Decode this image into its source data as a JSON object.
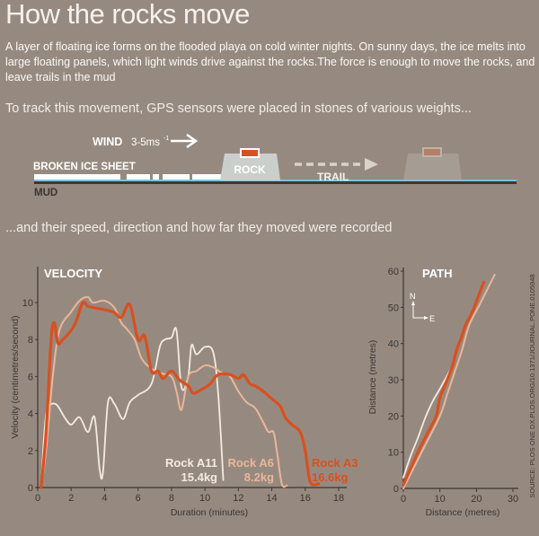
{
  "title": "How the rocks move",
  "intro": "A layer of floating ice forms on the flooded playa on cold winter nights. On sunny days, the ice melts into large floating panels, which light winds drive against the rocks.The force is enough to move the rocks, and leave trails in the mud",
  "sub1": "To track this movement, GPS sensors were placed in stones of various weights...",
  "sub2": "...and their speed, direction and how far they moved were recorded",
  "diagram": {
    "wind": "WIND",
    "wind_speed": "3-5ms",
    "wind_unit_exp": "-1",
    "ice": "BROKEN ICE SHEET",
    "mud": "MUD",
    "rock": "ROCK",
    "trail": "TRAIL"
  },
  "colors": {
    "bg": "#968a80",
    "a3": "#d9501f",
    "a6": "#eab699",
    "a11": "#f4ebe0",
    "water": "#7fbfdc",
    "axis": "#3a3533"
  },
  "source": "SOURCE: PLOS ONE DX.PLOS.ORG/10.1371/JOURNAL.PONE.0105948",
  "chart_data": [
    {
      "type": "line",
      "title": "VELOCITY",
      "xlabel": "Duration (minutes)",
      "ylabel": "Velocity (centimetres/second)",
      "xlim": [
        0,
        18
      ],
      "ylim": [
        0,
        11
      ],
      "xticks": [
        "0",
        "2",
        "4",
        "6",
        "8",
        "10",
        "12",
        "14",
        "16",
        "18"
      ],
      "yticks": [
        "0",
        "2",
        "4",
        "6",
        "8",
        "10"
      ],
      "series": [
        {
          "name": "Rock A11",
          "weight": "15.4kg",
          "color": "#f4ebe0",
          "points": [
            [
              0.2,
              0
            ],
            [
              0.4,
              3
            ],
            [
              0.6,
              4.3
            ],
            [
              1.1,
              4.5
            ],
            [
              1.6,
              3.8
            ],
            [
              2,
              3.4
            ],
            [
              2.5,
              3.8
            ],
            [
              3,
              3
            ],
            [
              3.4,
              3.8
            ],
            [
              3.7,
              1
            ],
            [
              3.9,
              0.8
            ],
            [
              4.2,
              4.6
            ],
            [
              4.6,
              4.5
            ],
            [
              5.1,
              3.7
            ],
            [
              5.5,
              4.6
            ],
            [
              6,
              5
            ],
            [
              6.8,
              5.6
            ],
            [
              7.3,
              7.6
            ],
            [
              7.6,
              8
            ],
            [
              8,
              8.1
            ],
            [
              8.3,
              8.5
            ],
            [
              8.6,
              5.4
            ],
            [
              9,
              6
            ],
            [
              9.2,
              7.7
            ],
            [
              9.5,
              7.2
            ],
            [
              10,
              7.6
            ],
            [
              10.5,
              7.3
            ],
            [
              10.8,
              5
            ],
            [
              11.1,
              0.4
            ]
          ]
        },
        {
          "name": "Rock A6",
          "weight": "8.2kg",
          "color": "#eab699",
          "points": [
            [
              0.2,
              0
            ],
            [
              0.5,
              2
            ],
            [
              0.9,
              6
            ],
            [
              1.3,
              8.5
            ],
            [
              2,
              9.5
            ],
            [
              2.5,
              10.1
            ],
            [
              3,
              10.3
            ],
            [
              3.3,
              10
            ],
            [
              4,
              10.1
            ],
            [
              4.6,
              9.7
            ],
            [
              5,
              8.9
            ],
            [
              5.3,
              8.6
            ],
            [
              5.8,
              8
            ],
            [
              6.2,
              7
            ],
            [
              6.7,
              6.5
            ],
            [
              7.3,
              6.2
            ],
            [
              8,
              6
            ],
            [
              8.3,
              5.2
            ],
            [
              8.6,
              4.2
            ],
            [
              9,
              6
            ],
            [
              9.5,
              6.3
            ],
            [
              10,
              6.6
            ],
            [
              10.5,
              6.5
            ],
            [
              11,
              6.2
            ],
            [
              11.5,
              6
            ],
            [
              12,
              5.2
            ],
            [
              12.5,
              4.6
            ],
            [
              13,
              4.3
            ],
            [
              13.5,
              3.5
            ],
            [
              13.8,
              3
            ],
            [
              14.1,
              3
            ],
            [
              14.3,
              2
            ],
            [
              14.6,
              0.2
            ],
            [
              14.9,
              0.1
            ]
          ]
        },
        {
          "name": "Rock A3",
          "weight": "16.6kg",
          "color": "#d9501f",
          "points": [
            [
              0.2,
              0
            ],
            [
              0.5,
              3
            ],
            [
              0.8,
              8
            ],
            [
              1,
              8.9
            ],
            [
              1.2,
              7.8
            ],
            [
              1.5,
              8
            ],
            [
              2,
              8.5
            ],
            [
              2.3,
              9
            ],
            [
              2.7,
              10
            ],
            [
              3,
              9.8
            ],
            [
              3.5,
              9.7
            ],
            [
              4.5,
              9.5
            ],
            [
              5,
              9.2
            ],
            [
              5.5,
              9.9
            ],
            [
              6,
              8
            ],
            [
              6.4,
              8.2
            ],
            [
              6.8,
              6.3
            ],
            [
              7.2,
              6.3
            ],
            [
              7.5,
              5.9
            ],
            [
              8,
              6.3
            ],
            [
              8.5,
              5.8
            ],
            [
              9,
              5.5
            ],
            [
              9.3,
              5.1
            ],
            [
              9.8,
              5.3
            ],
            [
              10.3,
              5.6
            ],
            [
              10.8,
              6.1
            ],
            [
              11.5,
              6.1
            ],
            [
              12,
              5.9
            ],
            [
              12.3,
              6.1
            ],
            [
              12.7,
              5.6
            ],
            [
              13,
              5.5
            ],
            [
              13.5,
              5.2
            ],
            [
              14,
              4.8
            ],
            [
              14.5,
              4.4
            ],
            [
              14.8,
              3.8
            ],
            [
              15.2,
              3.4
            ],
            [
              15.7,
              3
            ],
            [
              16,
              2
            ],
            [
              16.3,
              0.3
            ],
            [
              16.8,
              0.2
            ]
          ]
        }
      ]
    },
    {
      "type": "line",
      "title": "PATH",
      "xlabel": "Distance (metres)",
      "ylabel": "Distance (metres)",
      "compass_n": "N",
      "compass_e": "E",
      "xlim": [
        0,
        30
      ],
      "ylim": [
        0,
        60
      ],
      "xticks": [
        "0",
        "10",
        "20",
        "30"
      ],
      "yticks": [
        "0",
        "10",
        "20",
        "30",
        "40",
        "50",
        "60"
      ],
      "series": [
        {
          "name": "Rock A11",
          "color": "#f4ebe0",
          "points": [
            [
              0,
              3
            ],
            [
              2,
              9
            ],
            [
              4,
              14
            ],
            [
              6,
              19.5
            ],
            [
              8,
              24
            ],
            [
              10,
              27.5
            ],
            [
              13,
              33
            ]
          ]
        },
        {
          "name": "Rock A6",
          "color": "#eab699",
          "points": [
            [
              0,
              0
            ],
            [
              5,
              10
            ],
            [
              10,
              20
            ],
            [
              12,
              26
            ],
            [
              14,
              32
            ],
            [
              16,
              38
            ],
            [
              18,
              45
            ],
            [
              21,
              51
            ],
            [
              23,
              55
            ],
            [
              25,
              59
            ]
          ]
        },
        {
          "name": "Rock A3",
          "color": "#d9501f",
          "points": [
            [
              0,
              1
            ],
            [
              4,
              10
            ],
            [
              7,
              16
            ],
            [
              9,
              20
            ],
            [
              10,
              25
            ],
            [
              12,
              30
            ],
            [
              13.5,
              34
            ],
            [
              14.5,
              38
            ],
            [
              16,
              42
            ],
            [
              17,
              45
            ],
            [
              19,
              49
            ],
            [
              20.5,
              53
            ],
            [
              22,
              57
            ]
          ]
        }
      ]
    }
  ]
}
